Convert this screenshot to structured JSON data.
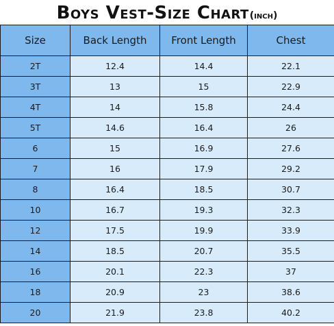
{
  "title": {
    "main": "Boys Vest-Size Chart",
    "unit": "(inch)"
  },
  "table": {
    "headers": [
      "Size",
      "Back Length",
      "Front Length",
      "Chest"
    ],
    "rows": [
      [
        "2T",
        "12.4",
        "14.4",
        "22.1"
      ],
      [
        "3T",
        "13",
        "15",
        "22.9"
      ],
      [
        "4T",
        "14",
        "15.8",
        "24.4"
      ],
      [
        "5T",
        "14.6",
        "16.4",
        "26"
      ],
      [
        "6",
        "15",
        "16.9",
        "27.6"
      ],
      [
        "7",
        "16",
        "17.9",
        "29.2"
      ],
      [
        "8",
        "16.4",
        "18.5",
        "30.7"
      ],
      [
        "10",
        "16.7",
        "19.3",
        "32.3"
      ],
      [
        "12",
        "17.5",
        "19.9",
        "33.9"
      ],
      [
        "14",
        "18.5",
        "20.7",
        "35.5"
      ],
      [
        "16",
        "20.1",
        "22.3",
        "37"
      ],
      [
        "18",
        "20.9",
        "23",
        "38.6"
      ],
      [
        "20",
        "21.9",
        "23.8",
        "40.2"
      ]
    ]
  },
  "colors": {
    "header_bg": "#7eb8ec",
    "cell_bg": "#d7ebfb",
    "border": "#1a1a1a"
  }
}
